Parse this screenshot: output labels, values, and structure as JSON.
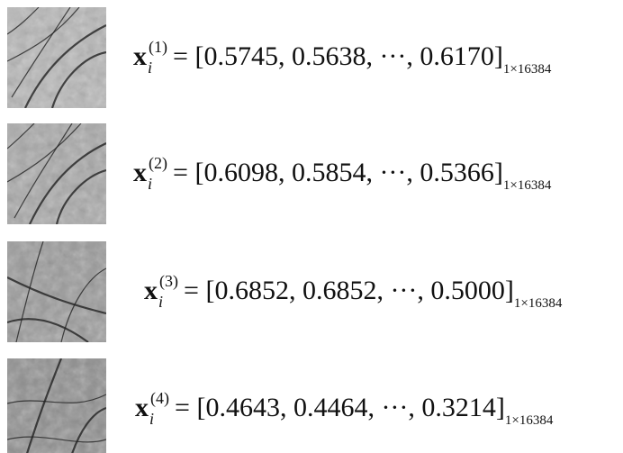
{
  "symbol": "x",
  "subscript": "i",
  "equals": "=",
  "open": "[",
  "close": "]",
  "separator": ",",
  "ellipsis": "···",
  "dimension": "1×16384",
  "rows": [
    {
      "superscript": "(1)",
      "values": [
        "0.5745",
        "0.5638",
        "0.6170"
      ]
    },
    {
      "superscript": "(2)",
      "values": [
        "0.6098",
        "0.5854",
        "0.5366"
      ]
    },
    {
      "superscript": "(3)",
      "values": [
        "0.6852",
        "0.6852",
        "0.5000"
      ]
    },
    {
      "superscript": "(4)",
      "values": [
        "0.4643",
        "0.4464",
        "0.3214"
      ]
    }
  ]
}
